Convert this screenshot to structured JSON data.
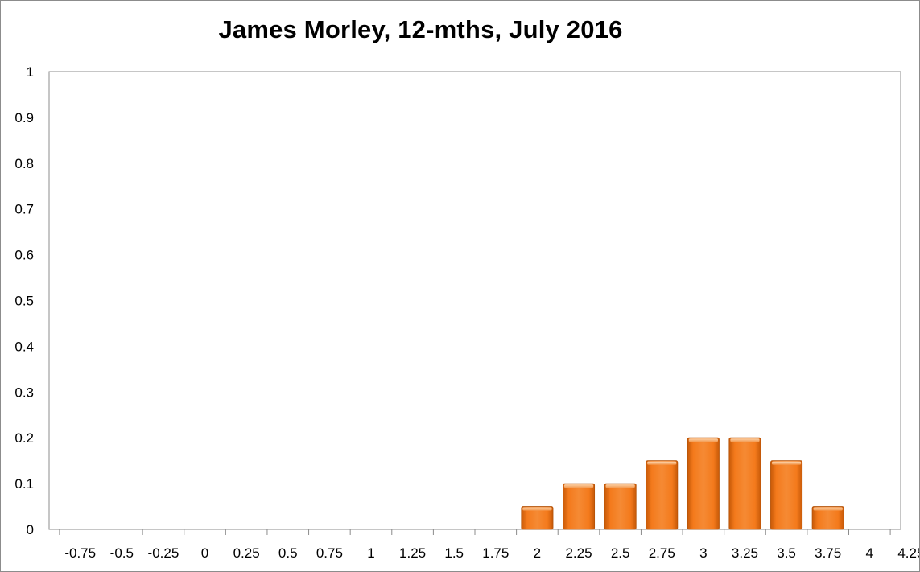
{
  "chart_data": {
    "type": "bar",
    "title": "James Morley, 12-mths, July 2016",
    "xlabel": "",
    "ylabel": "",
    "categories": [
      "-0.75",
      "-0.5",
      "-0.25",
      "0",
      "0.25",
      "0.5",
      "0.75",
      "1",
      "1.25",
      "1.5",
      "1.75",
      "2",
      "2.25",
      "2.5",
      "2.75",
      "3",
      "3.25",
      "3.5",
      "3.75",
      "4",
      "4.25"
    ],
    "values": [
      0,
      0,
      0,
      0,
      0,
      0,
      0,
      0,
      0,
      0,
      0,
      0.05,
      0.1,
      0.1,
      0.15,
      0.2,
      0.2,
      0.15,
      0.05,
      0,
      0
    ],
    "ylim": [
      0,
      1
    ],
    "yticks": [
      "0",
      "0.1",
      "0.2",
      "0.3",
      "0.4",
      "0.5",
      "0.6",
      "0.7",
      "0.8",
      "0.9",
      "1"
    ],
    "grid": false,
    "legend": "none",
    "bar_color": "#f07414"
  }
}
